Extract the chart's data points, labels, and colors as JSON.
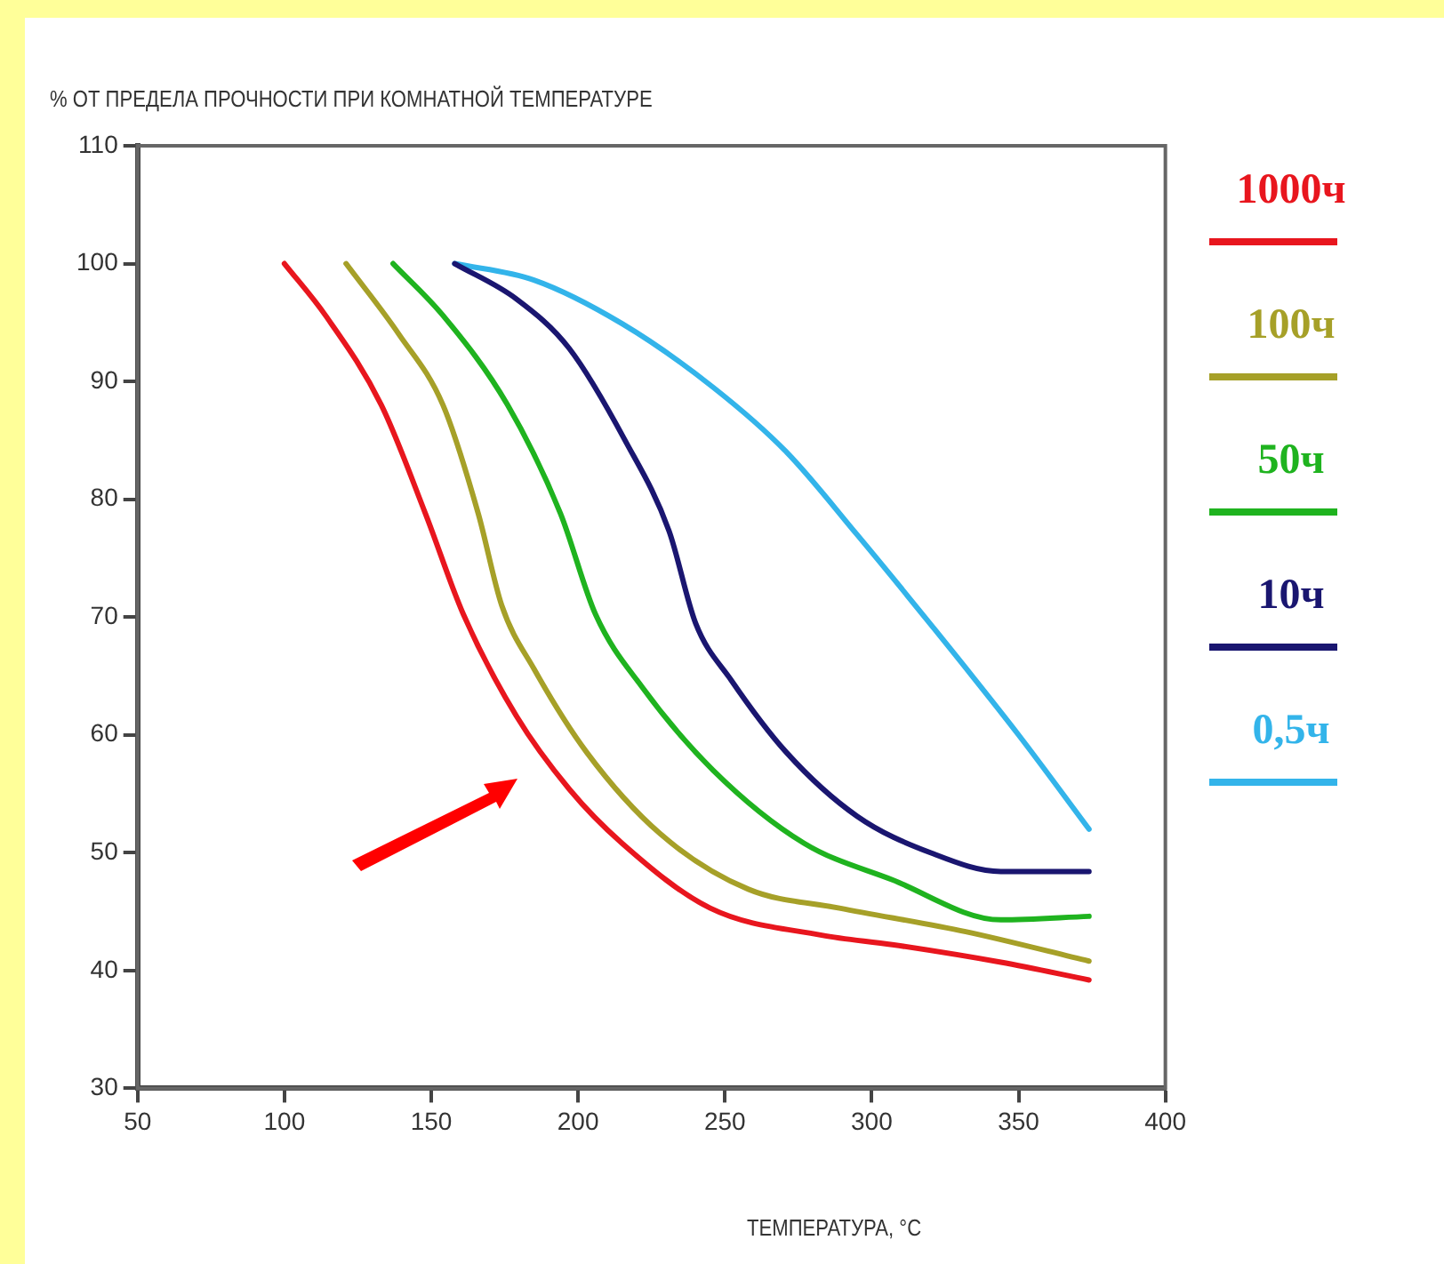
{
  "chart_data": {
    "type": "line",
    "ylabel": "% ОТ ПРЕДЕЛА ПРОЧНОСТИ ПРИ КОМНАТНОЙ ТЕМПЕРАТУРЕ",
    "xlabel": "ТЕМПЕРАТУРА, °С",
    "xlim": [
      50,
      400
    ],
    "xticks": [
      50,
      100,
      150,
      200,
      250,
      300,
      350,
      400
    ],
    "ylim": [
      30,
      110
    ],
    "yticks": [
      30,
      40,
      50,
      60,
      70,
      80,
      90,
      100,
      110
    ],
    "grid": false,
    "legend": "right",
    "marker": "none",
    "line_style": "solid",
    "series": [
      {
        "name": "1000ч",
        "color": "#e8161e",
        "x": [
          100,
          114,
          133,
          148,
          161,
          179,
          197,
          215,
          245,
          283,
          307,
          344,
          374
        ],
        "values": [
          100,
          95.6,
          88,
          78.8,
          70.2,
          61.6,
          55.4,
          50.8,
          45.3,
          43,
          42.2,
          40.7,
          39.2
        ]
      },
      {
        "name": "100ч",
        "color": "#a6a028",
        "x": [
          121,
          139,
          154,
          166,
          174,
          185,
          203,
          228,
          258,
          289,
          332,
          374
        ],
        "values": [
          100,
          94,
          88,
          78.8,
          71,
          65.6,
          58.5,
          51.6,
          46.9,
          45.3,
          43.3,
          40.8
        ]
      },
      {
        "name": "50ч",
        "color": "#1fb31f",
        "x": [
          137,
          154,
          176,
          194,
          206,
          222,
          246,
          277,
          307,
          344,
          374
        ],
        "values": [
          100,
          95.6,
          88,
          78.8,
          70.2,
          64,
          57,
          50.8,
          47.7,
          44.3,
          44.6
        ]
      },
      {
        "name": "10ч",
        "color": "#1a1670",
        "x": [
          158,
          179,
          197,
          216,
          231,
          240,
          252,
          271,
          295,
          320,
          344,
          374
        ],
        "values": [
          100,
          97,
          92.8,
          85,
          77.3,
          69.5,
          64.7,
          58.5,
          53.1,
          50,
          48.4,
          48.4
        ]
      },
      {
        "name": "0,5ч",
        "color": "#33b4ea",
        "x": [
          158,
          185,
          215,
          246,
          271,
          295,
          320,
          350,
          374
        ],
        "values": [
          100,
          98.6,
          94.9,
          89.5,
          84,
          77,
          69.4,
          60,
          52
        ]
      }
    ]
  }
}
